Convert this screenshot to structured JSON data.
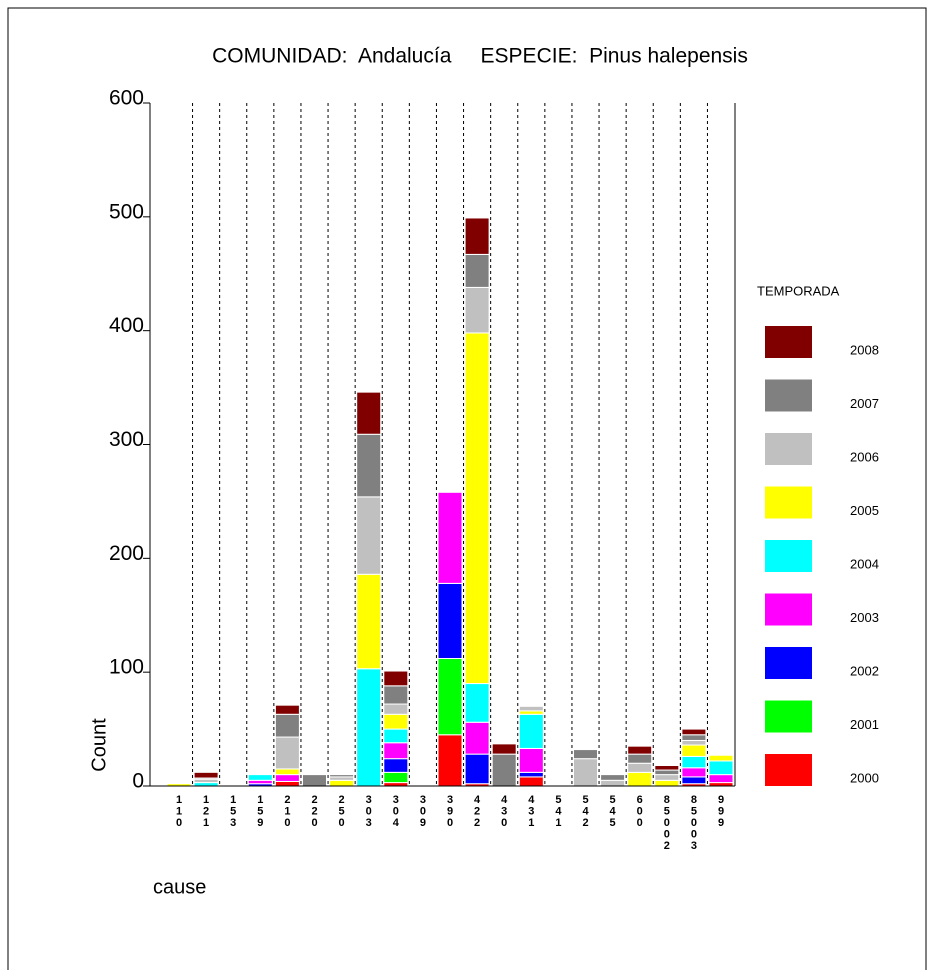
{
  "chart_data": {
    "type": "stacked_bar",
    "title": "COMUNIDAD:  Andalucía     ESPECIE:  Pinus halepensis",
    "x_label": "cause",
    "y_label": "Count",
    "legend_title": "TEMPORADA",
    "categories": [
      "110",
      "121",
      "153",
      "159",
      "210",
      "220",
      "250",
      "303",
      "304",
      "309",
      "390",
      "422",
      "430",
      "431",
      "541",
      "542",
      "545",
      "600",
      "85002",
      "85003",
      "999"
    ],
    "series": [
      {
        "name": "2000",
        "color": "#ff0000",
        "values": [
          0,
          0,
          0,
          0,
          4,
          0,
          0,
          0,
          3,
          0,
          45,
          2,
          0,
          8,
          0,
          0,
          0,
          0,
          0,
          2,
          3
        ]
      },
      {
        "name": "2001",
        "color": "#00ff00",
        "values": [
          0,
          0,
          0,
          0,
          0,
          0,
          0,
          0,
          9,
          0,
          67,
          0,
          0,
          0,
          0,
          0,
          0,
          0,
          0,
          0,
          0
        ]
      },
      {
        "name": "2002",
        "color": "#0000ff",
        "values": [
          0,
          0,
          0,
          2,
          0,
          0,
          0,
          0,
          12,
          0,
          66,
          26,
          0,
          4,
          0,
          0,
          0,
          0,
          0,
          6,
          0
        ]
      },
      {
        "name": "2003",
        "color": "#ff00ff",
        "values": [
          0,
          0,
          0,
          3,
          6,
          0,
          0,
          0,
          14,
          0,
          80,
          28,
          0,
          21,
          0,
          0,
          0,
          0,
          0,
          8,
          7
        ]
      },
      {
        "name": "2004",
        "color": "#00ffff",
        "values": [
          0,
          3,
          0,
          5,
          0,
          0,
          0,
          103,
          12,
          0,
          0,
          34,
          0,
          30,
          0,
          0,
          0,
          0,
          0,
          10,
          12
        ]
      },
      {
        "name": "2005",
        "color": "#ffff00",
        "values": [
          2,
          0,
          0,
          0,
          5,
          0,
          5,
          83,
          13,
          0,
          0,
          308,
          0,
          3,
          0,
          0,
          0,
          12,
          5,
          10,
          5
        ]
      },
      {
        "name": "2006",
        "color": "#c0c0c0",
        "values": [
          0,
          3,
          0,
          0,
          28,
          0,
          3,
          68,
          9,
          0,
          0,
          40,
          0,
          4,
          0,
          24,
          5,
          8,
          5,
          4,
          0
        ]
      },
      {
        "name": "2007",
        "color": "#808080",
        "values": [
          0,
          1,
          0,
          0,
          20,
          10,
          2,
          55,
          16,
          0,
          0,
          29,
          28,
          0,
          0,
          8,
          5,
          8,
          4,
          5,
          0
        ]
      },
      {
        "name": "2008",
        "color": "#800000",
        "values": [
          0,
          5,
          0,
          0,
          8,
          0,
          0,
          37,
          13,
          0,
          0,
          32,
          9,
          0,
          0,
          0,
          0,
          7,
          4,
          5,
          0
        ]
      }
    ],
    "ylim": [
      0,
      600
    ],
    "yticks": [
      0,
      100,
      200,
      300,
      400,
      500,
      600
    ],
    "grid": "category-dashed",
    "legend": "right"
  }
}
